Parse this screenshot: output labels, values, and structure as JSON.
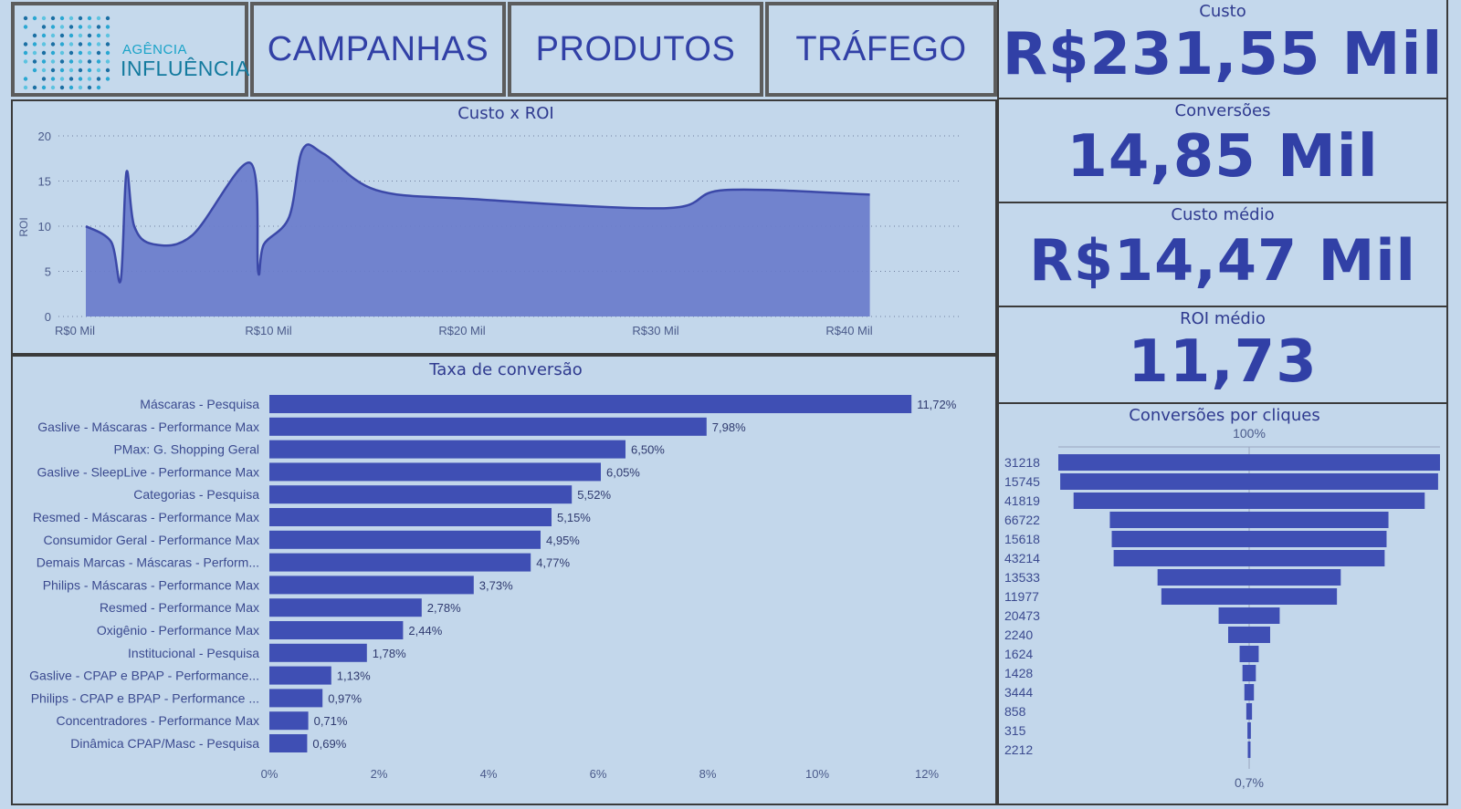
{
  "logo": {
    "line1": "AGÊNCIA",
    "line2": "INFLUÊNCIA"
  },
  "nav": {
    "campanhas": "CAMPANHAS",
    "produtos": "PRODUTOS",
    "trafego": "TRÁFEGO"
  },
  "kpis": {
    "custo": {
      "title": "Custo",
      "value": "R$231,55 Mil"
    },
    "conversoes": {
      "title": "Conversões",
      "value": "14,85 Mil"
    },
    "custo_medio": {
      "title": "Custo médio",
      "value": "R$14,47 Mil"
    },
    "roi_medio": {
      "title": "ROI médio",
      "value": "11,73"
    }
  },
  "colors": {
    "accent": "#3f4fb4",
    "area_fill": "#6a7ccb",
    "background": "#c4d8ec",
    "text": "#2f3a8f"
  },
  "chart_data": [
    {
      "type": "area",
      "title": "Custo x ROI",
      "xlabel": "",
      "ylabel": "ROI",
      "x_ticks": [
        "R$0 Mil",
        "R$10 Mil",
        "R$20 Mil",
        "R$30 Mil",
        "R$40 Mil"
      ],
      "y_ticks": [
        "0",
        "5",
        "10",
        "15",
        "20"
      ],
      "xlim": [
        0,
        45
      ],
      "ylim": [
        0,
        20
      ],
      "grid": true,
      "x": [
        0,
        1.3,
        1.8,
        2.1,
        2.5,
        3.5,
        5.5,
        8.5,
        8.9,
        9.2,
        10.5,
        11.2,
        12.3,
        15,
        20,
        30,
        33,
        40.5
      ],
      "y": [
        10,
        8.3,
        4,
        16,
        10,
        8,
        9,
        17,
        5,
        8,
        11,
        18.5,
        18,
        14,
        13,
        12,
        14,
        13.5
      ]
    },
    {
      "type": "bar",
      "orientation": "horizontal",
      "title": "Taxa de conversão",
      "categories": [
        "Máscaras - Pesquisa",
        "Gaslive - Máscaras - Performance Max",
        "PMax: G. Shopping Geral",
        "Gaslive - SleepLive - Performance Max",
        "Categorias - Pesquisa",
        "Resmed - Máscaras - Performance Max",
        "Consumidor Geral - Performance Max",
        "Demais Marcas - Máscaras - Perform...",
        "Philips - Máscaras - Performance Max",
        "Resmed - Performance Max",
        "Oxigênio - Performance Max",
        "Institucional - Pesquisa",
        "Gaslive - CPAP e BPAP - Performance...",
        "Philips - CPAP e BPAP - Performance ...",
        "Concentradores - Performance Max",
        "Dinâmica CPAP/Masc - Pesquisa"
      ],
      "values": [
        11.72,
        7.98,
        6.5,
        6.05,
        5.52,
        5.15,
        4.95,
        4.77,
        3.73,
        2.78,
        2.44,
        1.78,
        1.13,
        0.97,
        0.71,
        0.69
      ],
      "labels": [
        "11,72%",
        "7,98%",
        "6,50%",
        "6,05%",
        "5,52%",
        "5,15%",
        "4,95%",
        "4,77%",
        "3,73%",
        "2,78%",
        "2,44%",
        "1,78%",
        "1,13%",
        "0,97%",
        "0,71%",
        "0,69%"
      ],
      "x_ticks": [
        "0%",
        "2%",
        "4%",
        "6%",
        "8%",
        "10%",
        "12%"
      ],
      "xlim": [
        0,
        12
      ]
    },
    {
      "type": "funnel",
      "title": "Conversões por cliques",
      "top_label": "100%",
      "bottom_label": "0,7%",
      "categories": [
        "31218",
        "15745",
        "41819",
        "66722",
        "15618",
        "43214",
        "13533",
        "11977",
        "20473",
        "2240",
        "1624",
        "1428",
        "3444",
        "858",
        "315",
        "2212"
      ],
      "values": [
        100,
        99,
        92,
        73,
        72,
        71,
        48,
        46,
        16,
        11,
        5,
        3.5,
        2.5,
        1.5,
        0.9,
        0.7
      ]
    }
  ]
}
